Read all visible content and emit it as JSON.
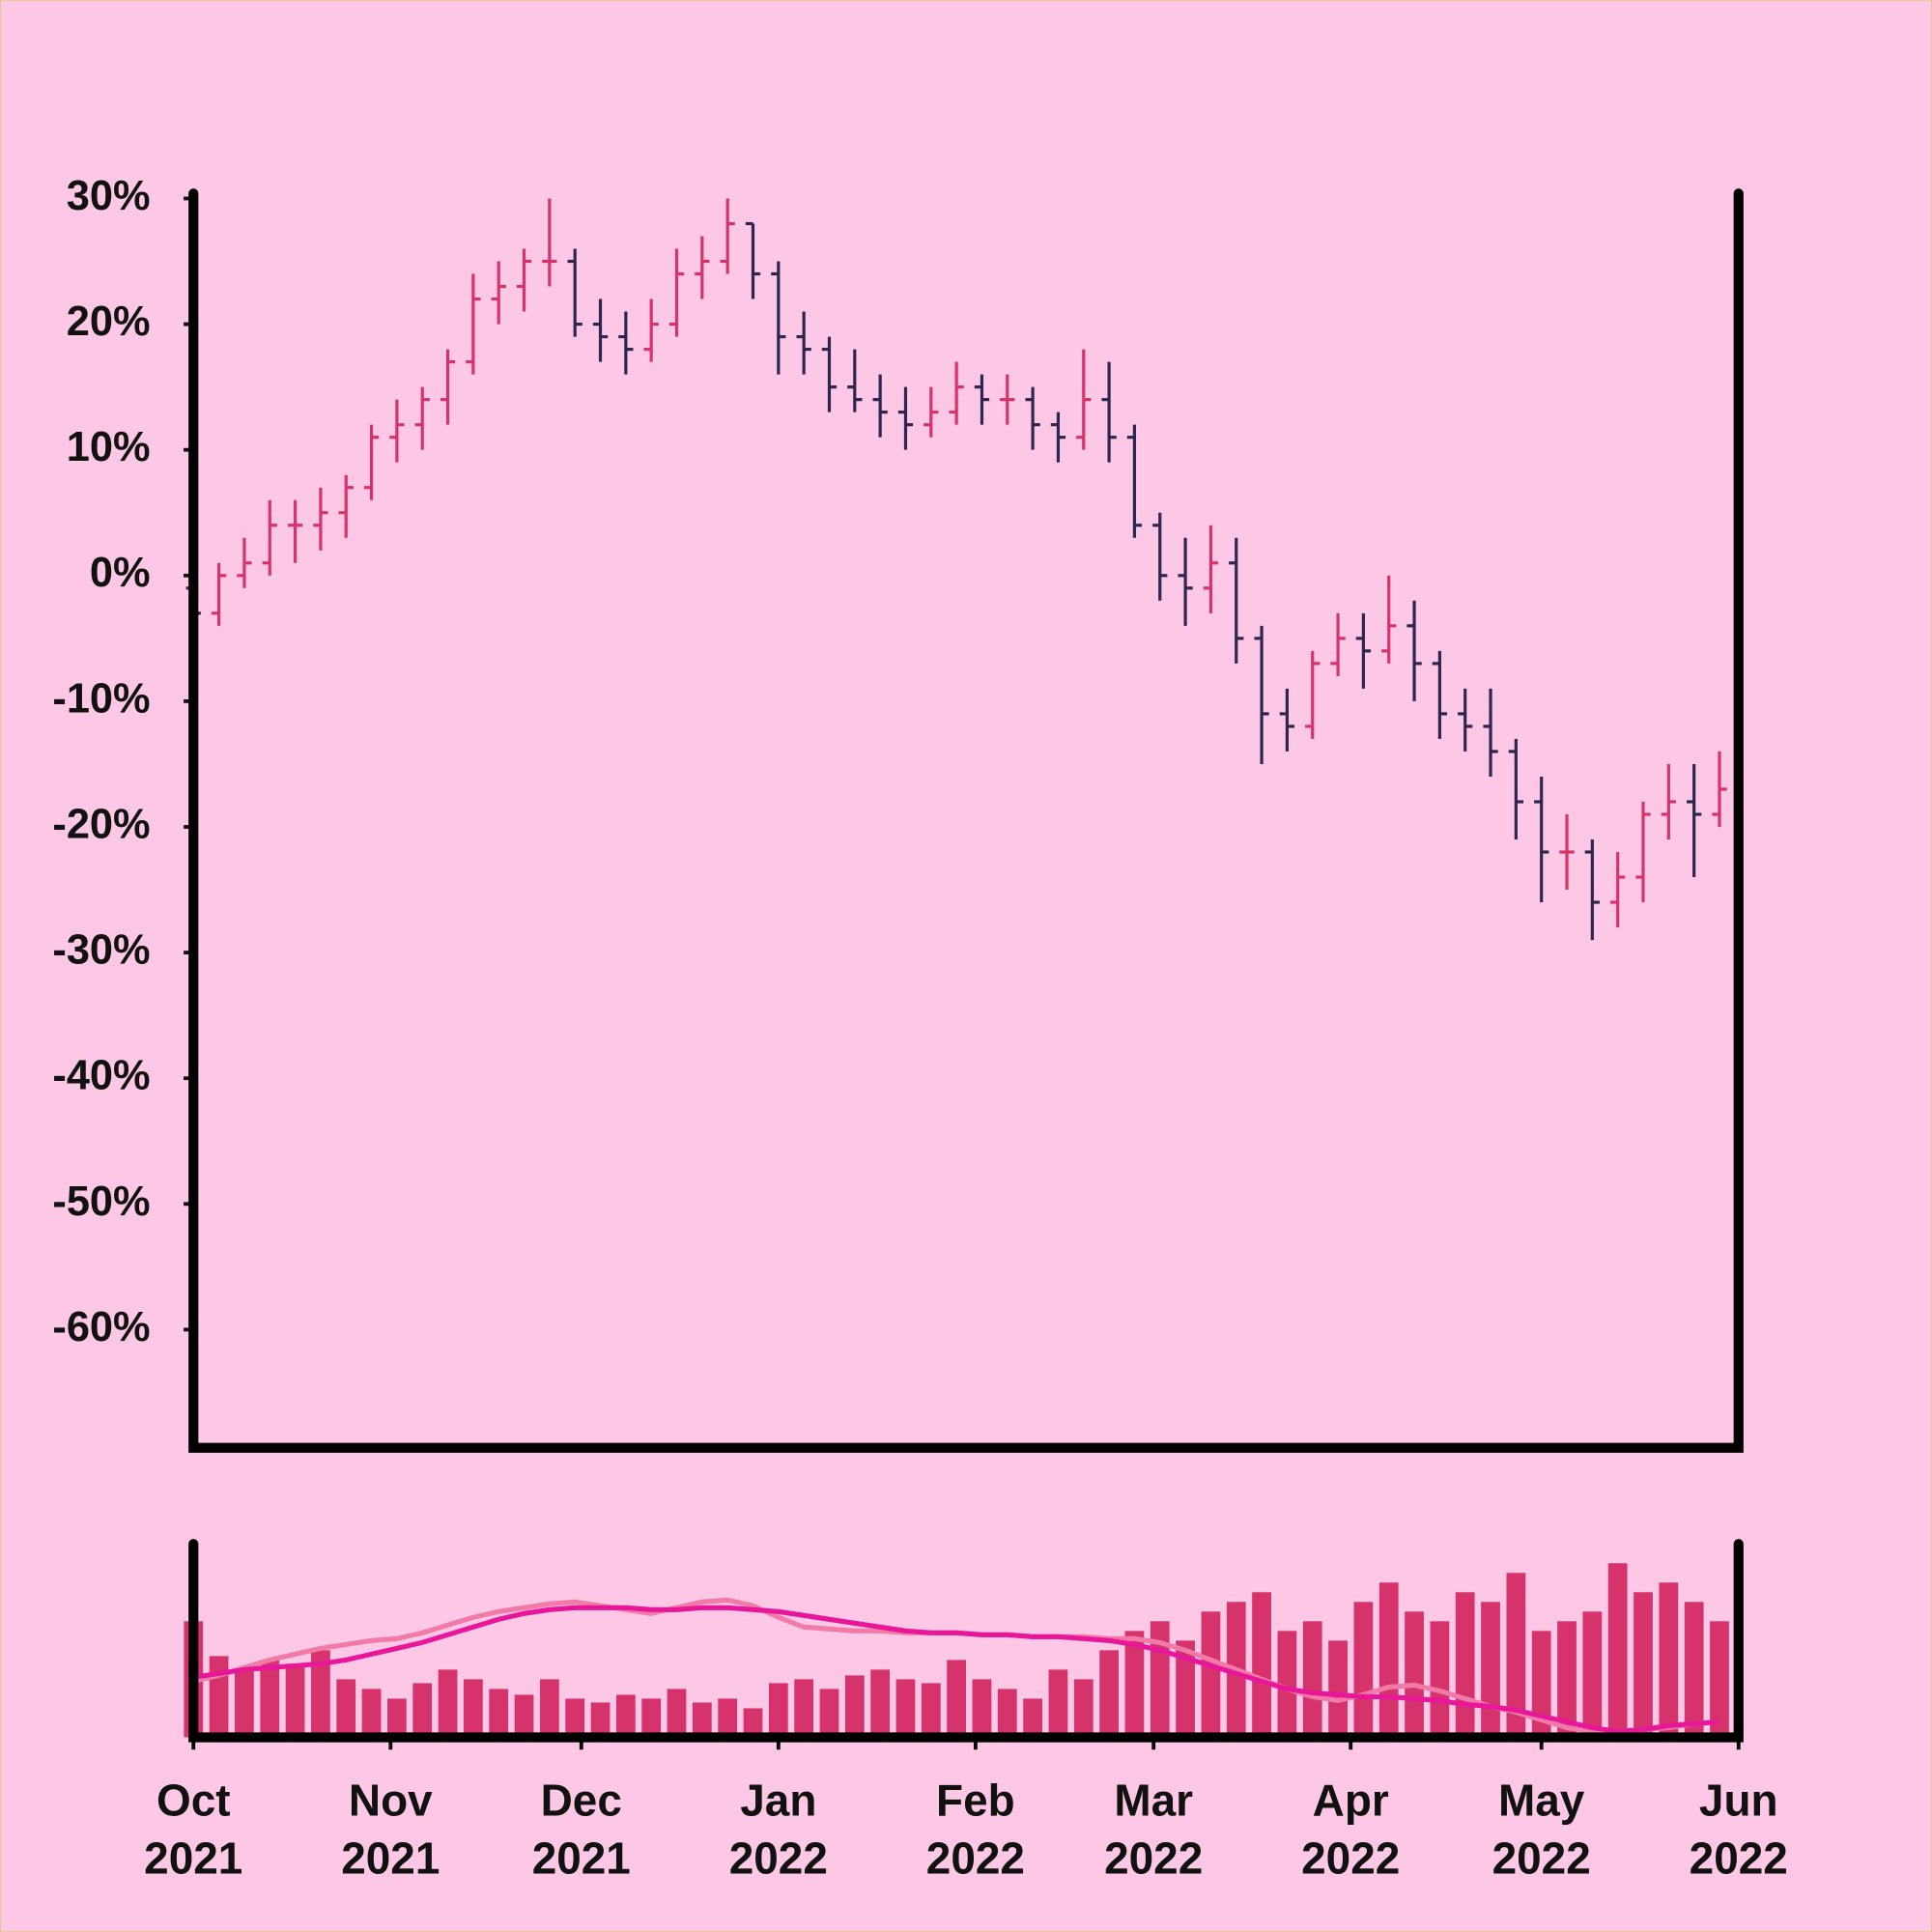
{
  "chart_data": [
    {
      "type": "ohlc",
      "x": [
        0,
        4,
        8,
        12,
        16,
        20,
        24,
        28,
        32,
        36,
        40,
        44,
        48,
        52,
        56,
        60,
        64,
        68,
        72,
        76,
        80,
        84,
        88,
        92,
        96,
        100,
        104,
        108,
        112,
        116,
        120,
        124,
        128,
        132,
        136,
        140,
        144,
        148,
        152,
        156,
        160,
        164,
        168,
        172,
        176,
        180,
        184,
        188,
        192,
        196,
        200,
        204,
        208,
        212,
        216,
        220,
        224,
        228,
        232,
        236,
        240
      ],
      "open": [
        -1,
        -3,
        0,
        1,
        4,
        4,
        5,
        7,
        11,
        12,
        14,
        17,
        22,
        23,
        25,
        25,
        20,
        19,
        18,
        20,
        24,
        25,
        28,
        24,
        19,
        18,
        15,
        14,
        13,
        12,
        13,
        15,
        14,
        14,
        12,
        11,
        14,
        11,
        4,
        0,
        -1,
        1,
        -5,
        -11,
        -12,
        -7,
        -5,
        -6,
        -4,
        -7,
        -11,
        -12,
        -14,
        -18,
        -22,
        -22,
        -26,
        -24,
        -19,
        -18,
        -19
      ],
      "high": [
        0,
        1,
        3,
        6,
        6,
        7,
        8,
        12,
        14,
        15,
        18,
        24,
        25,
        26,
        30,
        26,
        22,
        21,
        22,
        26,
        27,
        30,
        28,
        25,
        21,
        19,
        18,
        16,
        15,
        15,
        17,
        16,
        16,
        15,
        13,
        18,
        17,
        12,
        5,
        3,
        4,
        3,
        -4,
        -9,
        -6,
        -3,
        -3,
        0,
        -2,
        -6,
        -9,
        -9,
        -13,
        -16,
        -19,
        -21,
        -22,
        -18,
        -15,
        -15,
        -14
      ],
      "low": [
        -6,
        -4,
        -1,
        0,
        1,
        2,
        3,
        6,
        9,
        10,
        12,
        16,
        20,
        21,
        23,
        19,
        17,
        16,
        17,
        19,
        22,
        24,
        22,
        16,
        16,
        13,
        13,
        11,
        10,
        11,
        12,
        12,
        12,
        10,
        9,
        10,
        9,
        3,
        -2,
        -4,
        -3,
        -7,
        -15,
        -14,
        -13,
        -8,
        -9,
        -7,
        -10,
        -13,
        -14,
        -16,
        -21,
        -26,
        -25,
        -29,
        -28,
        -26,
        -21,
        -24,
        -20
      ],
      "close": [
        -3,
        0,
        1,
        4,
        4,
        5,
        7,
        11,
        12,
        14,
        17,
        22,
        23,
        25,
        25,
        20,
        19,
        18,
        20,
        24,
        25,
        28,
        24,
        19,
        18,
        15,
        14,
        13,
        12,
        13,
        15,
        14,
        14,
        12,
        11,
        14,
        11,
        4,
        0,
        -1,
        1,
        -5,
        -11,
        -12,
        -7,
        -5,
        -6,
        -4,
        -7,
        -11,
        -12,
        -14,
        -18,
        -22,
        -22,
        -26,
        -24,
        -19,
        -18,
        -19,
        -17
      ],
      "up_color": "#d6336c",
      "down_color": "#2e2550",
      "xlim": [
        0,
        243
      ],
      "ylim": [
        -69.4,
        30.4
      ],
      "yticks": [
        {
          "value": 30,
          "label": "30%"
        },
        {
          "value": 20,
          "label": "20%"
        },
        {
          "value": 10,
          "label": "10%"
        },
        {
          "value": 0,
          "label": "0%"
        },
        {
          "value": -10,
          "label": "-10%"
        },
        {
          "value": -20,
          "label": "-20%"
        },
        {
          "value": -30,
          "label": "-30%"
        },
        {
          "value": -40,
          "label": "-40%"
        },
        {
          "value": -50,
          "label": "-50%"
        },
        {
          "value": -60,
          "label": "-60%"
        }
      ]
    },
    {
      "type": "bar",
      "x": [
        0,
        4,
        8,
        12,
        16,
        20,
        24,
        28,
        32,
        36,
        40,
        44,
        48,
        52,
        56,
        60,
        64,
        68,
        72,
        76,
        80,
        84,
        88,
        92,
        96,
        100,
        104,
        108,
        112,
        116,
        120,
        124,
        128,
        132,
        136,
        140,
        144,
        148,
        152,
        156,
        160,
        164,
        168,
        172,
        176,
        180,
        184,
        188,
        192,
        196,
        200,
        204,
        208,
        212,
        216,
        220,
        224,
        228,
        232,
        236,
        240
      ],
      "values": [
        60,
        42,
        35,
        40,
        38,
        45,
        30,
        25,
        20,
        28,
        35,
        30,
        25,
        22,
        30,
        20,
        18,
        22,
        20,
        25,
        18,
        20,
        15,
        28,
        30,
        25,
        32,
        35,
        30,
        28,
        40,
        30,
        25,
        20,
        35,
        30,
        45,
        55,
        60,
        50,
        65,
        70,
        75,
        55,
        60,
        50,
        70,
        80,
        65,
        60,
        75,
        70,
        85,
        55,
        60,
        65,
        90,
        75,
        80,
        70,
        60
      ],
      "color": "#d6336c",
      "series": [
        {
          "color": "#f27aa8",
          "values": [
            29,
            32,
            36,
            40,
            43,
            46,
            48,
            50,
            51,
            54,
            58,
            62,
            65,
            67,
            69,
            70,
            68,
            66,
            64,
            67,
            70,
            71,
            68,
            62,
            57,
            56,
            55,
            55,
            54,
            54,
            54,
            53,
            53,
            52,
            52,
            52,
            51,
            51,
            49,
            45,
            40,
            35,
            30,
            25,
            21,
            19,
            22,
            26,
            27,
            24,
            20,
            16,
            13,
            9,
            5,
            3,
            3,
            4,
            5,
            7,
            8
          ]
        },
        {
          "color": "#e8179a",
          "values": [
            31,
            33,
            35,
            36,
            37,
            38,
            40,
            43,
            46,
            49,
            53,
            57,
            61,
            64,
            66,
            67,
            67,
            67,
            66,
            66,
            67,
            67,
            66,
            65,
            63,
            61,
            59,
            57,
            55,
            54,
            54,
            53,
            53,
            52,
            52,
            51,
            50,
            48,
            45,
            41,
            37,
            33,
            29,
            25,
            23,
            22,
            21,
            21,
            20,
            19,
            17,
            16,
            14,
            11,
            8,
            5,
            3,
            4,
            6,
            7,
            8
          ]
        }
      ],
      "xlim": [
        0,
        243
      ],
      "ylim": [
        0,
        100
      ],
      "xticks": [
        {
          "value": 0,
          "label": [
            "Oct",
            "2021"
          ]
        },
        {
          "value": 31,
          "label": [
            "Nov",
            "2021"
          ]
        },
        {
          "value": 61,
          "label": [
            "Dec",
            "2021"
          ]
        },
        {
          "value": 92,
          "label": [
            "Jan",
            "2022"
          ]
        },
        {
          "value": 123,
          "label": [
            "Feb",
            "2022"
          ]
        },
        {
          "value": 151,
          "label": [
            "Mar",
            "2022"
          ]
        },
        {
          "value": 182,
          "label": [
            "Apr",
            "2022"
          ]
        },
        {
          "value": 212,
          "label": [
            "May",
            "2022"
          ]
        },
        {
          "value": 243,
          "label": [
            "Jun",
            "2022"
          ]
        }
      ]
    }
  ]
}
